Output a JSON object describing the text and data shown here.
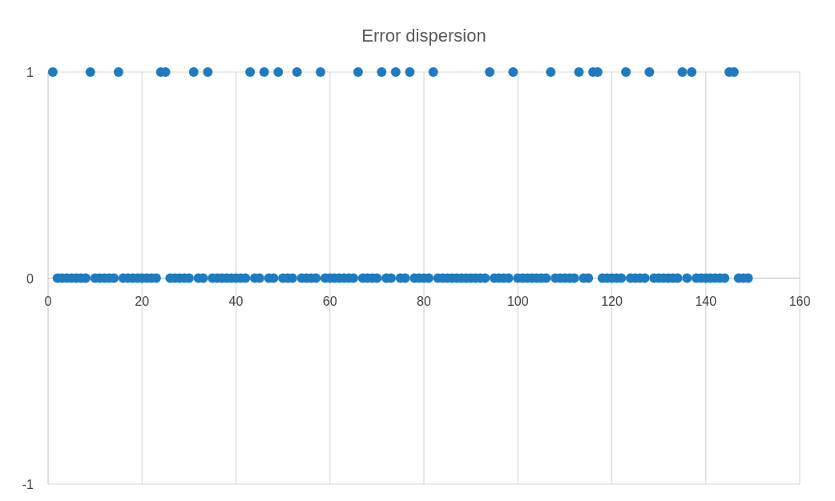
{
  "chart_data": {
    "type": "scatter",
    "title": "Error dispersion",
    "x": [
      1,
      2,
      3,
      4,
      5,
      6,
      7,
      8,
      9,
      10,
      11,
      12,
      13,
      14,
      15,
      16,
      17,
      18,
      19,
      20,
      21,
      22,
      23,
      24,
      25,
      26,
      27,
      28,
      29,
      30,
      31,
      32,
      33,
      34,
      35,
      36,
      37,
      38,
      39,
      40,
      41,
      42,
      43,
      44,
      45,
      46,
      47,
      48,
      49,
      50,
      51,
      52,
      53,
      54,
      55,
      56,
      57,
      58,
      59,
      60,
      61,
      62,
      63,
      64,
      65,
      66,
      67,
      68,
      69,
      70,
      71,
      72,
      73,
      74,
      75,
      76,
      77,
      78,
      79,
      80,
      81,
      82,
      83,
      84,
      85,
      86,
      87,
      88,
      89,
      90,
      91,
      92,
      93,
      94,
      95,
      96,
      97,
      98,
      99,
      100,
      101,
      102,
      103,
      104,
      105,
      106,
      107,
      108,
      109,
      110,
      111,
      112,
      113,
      114,
      115,
      116,
      117,
      118,
      119,
      120,
      121,
      122,
      123,
      124,
      125,
      126,
      127,
      128,
      129,
      130,
      131,
      132,
      133,
      134,
      135,
      136,
      137,
      138,
      139,
      140,
      141,
      142,
      143,
      144,
      145,
      146,
      147,
      148,
      149
    ],
    "values": [
      1,
      0,
      0,
      0,
      0,
      0,
      0,
      0,
      1,
      0,
      0,
      0,
      0,
      0,
      1,
      0,
      0,
      0,
      0,
      0,
      0,
      0,
      0,
      1,
      1,
      0,
      0,
      0,
      0,
      0,
      1,
      0,
      0,
      1,
      0,
      0,
      0,
      0,
      0,
      0,
      0,
      0,
      1,
      0,
      0,
      1,
      0,
      0,
      1,
      0,
      0,
      0,
      1,
      0,
      0,
      0,
      0,
      1,
      0,
      0,
      0,
      0,
      0,
      0,
      0,
      1,
      0,
      0,
      0,
      0,
      1,
      0,
      0,
      1,
      0,
      0,
      1,
      0,
      0,
      0,
      0,
      1,
      0,
      0,
      0,
      0,
      0,
      0,
      0,
      0,
      0,
      0,
      0,
      1,
      0,
      0,
      0,
      0,
      1,
      0,
      0,
      0,
      0,
      0,
      0,
      0,
      1,
      0,
      0,
      0,
      0,
      0,
      1,
      0,
      0,
      1,
      1,
      0,
      0,
      0,
      0,
      0,
      1,
      0,
      0,
      0,
      0,
      1,
      0,
      0,
      0,
      0,
      0,
      0,
      1,
      0,
      1,
      0,
      0,
      0,
      0,
      0,
      0,
      0,
      1,
      1,
      0,
      0,
      0
    ],
    "color": "#1f7bbf",
    "marker": "circle",
    "xlim": [
      0,
      160
    ],
    "xticks": [
      0,
      20,
      40,
      60,
      80,
      100,
      120,
      140,
      160
    ],
    "ylim": [
      -1,
      1
    ],
    "yticks": [
      -1,
      0,
      1
    ],
    "grid": true
  }
}
